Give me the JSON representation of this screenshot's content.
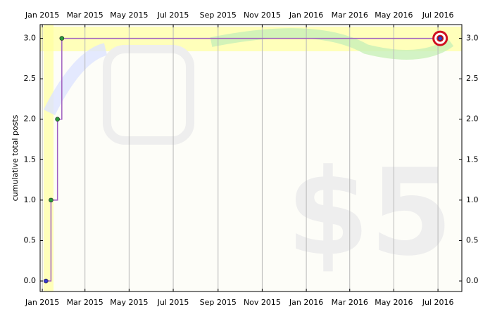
{
  "chart_data": {
    "type": "line",
    "step": true,
    "ylabel": "cumulative total posts",
    "x": [
      "2015-01-06",
      "2015-01-13",
      "2015-01-22",
      "2015-01-28",
      "2016-07-04"
    ],
    "series": [
      {
        "color": "#a060c0",
        "values": [
          0,
          1,
          2,
          3,
          3
        ]
      }
    ],
    "marker_color": "#2a9a3a",
    "end_marker_color": "#3a3ad0",
    "xlim": [
      "2014-12-29",
      "2016-08-03"
    ],
    "xticks": [
      {
        "value": "2015-01-01",
        "label": "Jan 2015"
      },
      {
        "value": "2015-03-01",
        "label": "Mar 2015"
      },
      {
        "value": "2015-05-01",
        "label": "May 2015"
      },
      {
        "value": "2015-07-01",
        "label": "Jul 2015"
      },
      {
        "value": "2015-09-01",
        "label": "Sep 2015"
      },
      {
        "value": "2015-11-01",
        "label": "Nov 2015"
      },
      {
        "value": "2016-01-01",
        "label": "Jan 2016"
      },
      {
        "value": "2016-03-01",
        "label": "Mar 2016"
      },
      {
        "value": "2016-05-01",
        "label": "May 2016"
      },
      {
        "value": "2016-07-01",
        "label": "Jul 2016"
      }
    ],
    "ylim": [
      -0.13,
      3.17
    ],
    "yticks": [
      {
        "value": 0,
        "label": "0.0"
      },
      0.5,
      {
        "value": 1,
        "label": "1.0"
      },
      1.5,
      {
        "value": 2,
        "label": "2.0"
      },
      2.5,
      {
        "value": 3,
        "label": "3.0"
      }
    ],
    "grid": true
  }
}
